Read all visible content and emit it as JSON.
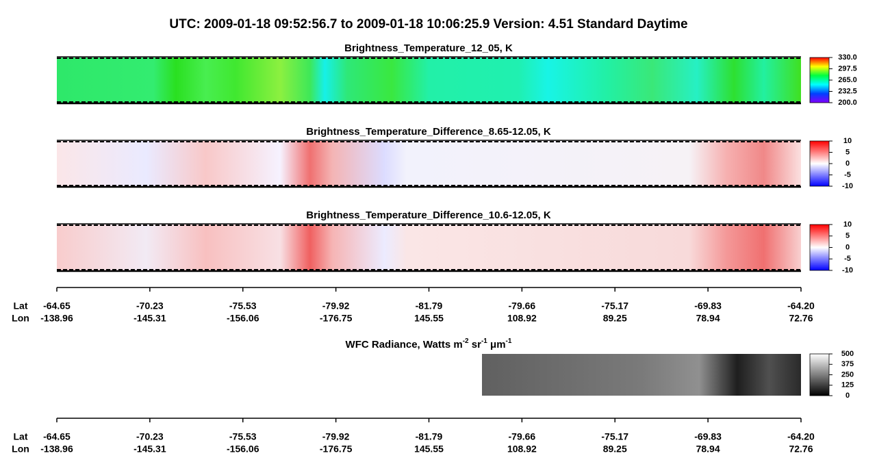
{
  "title": "UTC:  2009-01-18   09:52:56.7  to  2009-01-18   10:06:25.9    Version: 4.51  Standard Daytime",
  "panels": [
    {
      "title": "Brightness_Temperature_12_05, K",
      "colorbar_ticks": [
        "330.0",
        "297.5",
        "265.0",
        "232.5",
        "200.0"
      ]
    },
    {
      "title": "Brightness_Temperature_Difference_8.65-12.05, K",
      "colorbar_ticks": [
        "10",
        "5",
        "0",
        "-5",
        "-10"
      ]
    },
    {
      "title": "Brightness_Temperature_Difference_10.6-12.05, K",
      "colorbar_ticks": [
        "10",
        "5",
        "0",
        "-5",
        "-10"
      ]
    },
    {
      "title_parts": [
        "WFC Radiance, Watts m",
        "-2",
        " sr",
        "-1",
        " μm",
        "-1"
      ],
      "colorbar_ticks": [
        "500",
        "375",
        "250",
        "125",
        "0"
      ]
    }
  ],
  "axes": [
    {
      "lat_label": "Lat",
      "lon_label": "Lon",
      "lat": [
        "-64.65",
        "-70.23",
        "-75.53",
        "-79.92",
        "-81.79",
        "-79.66",
        "-75.17",
        "-69.83",
        "-64.20"
      ],
      "lon": [
        "-138.96",
        "-145.31",
        "-156.06",
        "-176.75",
        "145.55",
        "108.92",
        "89.25",
        "78.94",
        "72.76"
      ]
    },
    {
      "lat_label": "Lat",
      "lon_label": "Lon",
      "lat": [
        "-64.65",
        "-70.23",
        "-75.53",
        "-79.92",
        "-81.79",
        "-79.66",
        "-75.17",
        "-69.83",
        "-64.20"
      ],
      "lon": [
        "-138.96",
        "-145.31",
        "-156.06",
        "-176.75",
        "145.55",
        "108.92",
        "89.25",
        "78.94",
        "72.76"
      ]
    }
  ]
}
